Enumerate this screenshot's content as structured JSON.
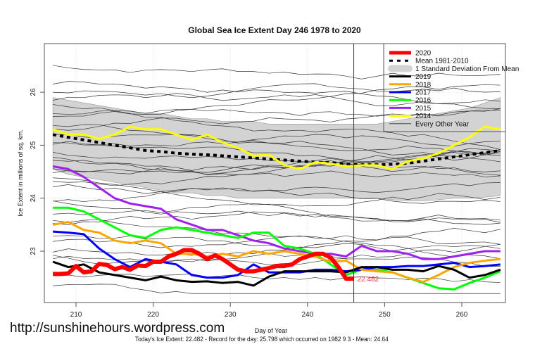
{
  "watermark": "http://sunshinehours.wordpress.com",
  "footer": "Today's Ice Extent: 22.482  - Record for the day: 25.798 which occurred on 1982 9 3  - Mean: 24.64",
  "chart_data": {
    "type": "line",
    "title": "Global Sea Ice Extent Day 246 1978 to 2020",
    "xlabel": "Day of Year",
    "ylabel": "Ice Extent in millions of sq. km.",
    "xlim": [
      206,
      266
    ],
    "ylim": [
      22.1,
      27.0
    ],
    "xticks": [
      210,
      220,
      230,
      240,
      250,
      260
    ],
    "yticks": [
      23,
      24,
      25,
      26
    ],
    "grid": true,
    "current_day": 246,
    "current_value_label": "22.482",
    "legend_position": "top-right",
    "legend": [
      {
        "label": "2020",
        "color": "#ff0000",
        "style": "thick"
      },
      {
        "label": "Mean 1981-2010",
        "color": "#000000",
        "style": "dashed"
      },
      {
        "label": "1 Standard Deviation From Mean",
        "color": "#d3d3d3",
        "style": "band"
      },
      {
        "label": "2019",
        "color": "#000000",
        "style": "solid"
      },
      {
        "label": "2018",
        "color": "#ffa500",
        "style": "solid"
      },
      {
        "label": "2017",
        "color": "#0000ff",
        "style": "solid"
      },
      {
        "label": "2016",
        "color": "#00ff00",
        "style": "solid"
      },
      {
        "label": "2015",
        "color": "#a020f0",
        "style": "solid"
      },
      {
        "label": "2014",
        "color": "#ffff00",
        "style": "solid"
      },
      {
        "label": "Every Other Year",
        "color": "#333333",
        "style": "thin"
      }
    ],
    "x": [
      207,
      209,
      211,
      213,
      215,
      217,
      219,
      221,
      223,
      225,
      227,
      229,
      231,
      233,
      235,
      237,
      239,
      241,
      243,
      245,
      247,
      249,
      251,
      253,
      255,
      257,
      259,
      261,
      263,
      265
    ],
    "band": {
      "upper": [
        25.9,
        25.85,
        25.8,
        25.75,
        25.7,
        25.65,
        25.6,
        25.6,
        25.55,
        25.5,
        25.5,
        25.45,
        25.45,
        25.45,
        25.4,
        25.4,
        25.4,
        25.4,
        25.4,
        25.4,
        25.4,
        25.4,
        25.45,
        25.5,
        25.55,
        25.6,
        25.65,
        25.7,
        25.8,
        25.9
      ],
      "lower": [
        24.55,
        24.45,
        24.4,
        24.35,
        24.3,
        24.25,
        24.2,
        24.15,
        24.1,
        24.1,
        24.05,
        24.05,
        24.0,
        24.0,
        24.0,
        24.0,
        24.0,
        24.0,
        24.0,
        24.0,
        24.0,
        24.0,
        23.97,
        23.95,
        23.95,
        23.97,
        24.0,
        24.0,
        24.02,
        24.05
      ]
    },
    "series": [
      {
        "name": "Mean 1981-2010",
        "values": [
          25.2,
          25.15,
          25.1,
          25.05,
          25.0,
          24.95,
          24.9,
          24.88,
          24.85,
          24.83,
          24.82,
          24.8,
          24.78,
          24.76,
          24.74,
          24.72,
          24.7,
          24.68,
          24.67,
          24.64,
          24.63,
          24.63,
          24.64,
          24.66,
          24.7,
          24.74,
          24.78,
          24.82,
          24.86,
          24.9
        ]
      },
      {
        "name": "2014",
        "values": [
          25.3,
          25.2,
          25.2,
          25.12,
          25.2,
          25.35,
          25.3,
          25.3,
          25.2,
          25.1,
          25.2,
          25.05,
          24.95,
          24.8,
          24.82,
          24.62,
          24.55,
          24.68,
          24.65,
          24.6,
          24.62,
          24.62,
          24.55,
          24.7,
          24.75,
          24.85,
          25.0,
          25.15,
          25.35,
          25.3
        ]
      },
      {
        "name": "2015",
        "values": [
          24.6,
          24.55,
          24.4,
          24.2,
          24.0,
          23.9,
          23.85,
          23.8,
          23.6,
          23.5,
          23.4,
          23.4,
          23.3,
          23.2,
          23.15,
          23.05,
          23.0,
          22.95,
          22.95,
          22.9,
          23.1,
          23.0,
          23.0,
          22.95,
          22.85,
          22.85,
          22.9,
          22.95,
          23.0,
          23.0
        ]
      },
      {
        "name": "2016",
        "values": [
          23.82,
          23.82,
          23.75,
          23.6,
          23.45,
          23.3,
          23.25,
          23.4,
          23.45,
          23.4,
          23.35,
          23.3,
          23.25,
          23.35,
          23.35,
          23.1,
          23.05,
          22.95,
          22.75,
          22.55,
          22.65,
          22.65,
          22.6,
          22.5,
          22.4,
          22.3,
          22.28,
          22.4,
          22.5,
          22.62
        ]
      },
      {
        "name": "2017",
        "values": [
          23.37,
          23.35,
          23.32,
          23.05,
          22.85,
          22.7,
          22.85,
          22.8,
          22.75,
          22.55,
          22.5,
          22.5,
          22.55,
          22.75,
          22.6,
          22.6,
          22.6,
          22.65,
          22.65,
          22.62,
          22.65,
          22.7,
          22.7,
          22.72,
          22.72,
          22.75,
          22.78,
          22.7,
          22.72,
          22.75
        ]
      },
      {
        "name": "2018",
        "values": [
          23.5,
          23.55,
          23.4,
          23.35,
          23.2,
          23.15,
          23.2,
          23.15,
          22.95,
          22.95,
          22.9,
          22.95,
          22.9,
          23.0,
          22.95,
          23.0,
          22.95,
          22.9,
          22.8,
          22.82,
          22.65,
          22.62,
          22.6,
          22.5,
          22.42,
          22.55,
          22.7,
          22.78,
          22.82,
          22.85
        ]
      },
      {
        "name": "2019",
        "values": [
          22.8,
          22.7,
          22.75,
          22.6,
          22.55,
          22.5,
          22.45,
          22.52,
          22.45,
          22.42,
          22.43,
          22.4,
          22.42,
          22.35,
          22.52,
          22.62,
          22.62,
          22.62,
          22.62,
          22.6,
          22.7,
          22.7,
          22.65,
          22.65,
          22.62,
          22.72,
          22.65,
          22.5,
          22.55,
          22.65
        ]
      },
      {
        "name": "2020",
        "x": [
          207,
          208,
          209,
          210,
          211,
          212,
          213,
          214,
          215,
          216,
          217,
          218,
          219,
          220,
          221,
          222,
          223,
          224,
          225,
          226,
          227,
          228,
          229,
          230,
          231,
          232,
          233,
          234,
          235,
          236,
          237,
          238,
          239,
          240,
          241,
          242,
          243,
          244,
          245,
          246
        ],
        "values": [
          22.57,
          22.57,
          22.58,
          22.72,
          22.6,
          22.62,
          22.76,
          22.74,
          22.66,
          22.7,
          22.65,
          22.73,
          22.72,
          22.8,
          22.8,
          22.9,
          22.95,
          23.02,
          23.02,
          22.95,
          22.85,
          22.92,
          22.85,
          22.75,
          22.65,
          22.62,
          22.62,
          22.65,
          22.68,
          22.72,
          22.72,
          22.75,
          22.85,
          22.9,
          22.95,
          22.95,
          22.88,
          22.7,
          22.48,
          22.482
        ]
      }
    ]
  }
}
